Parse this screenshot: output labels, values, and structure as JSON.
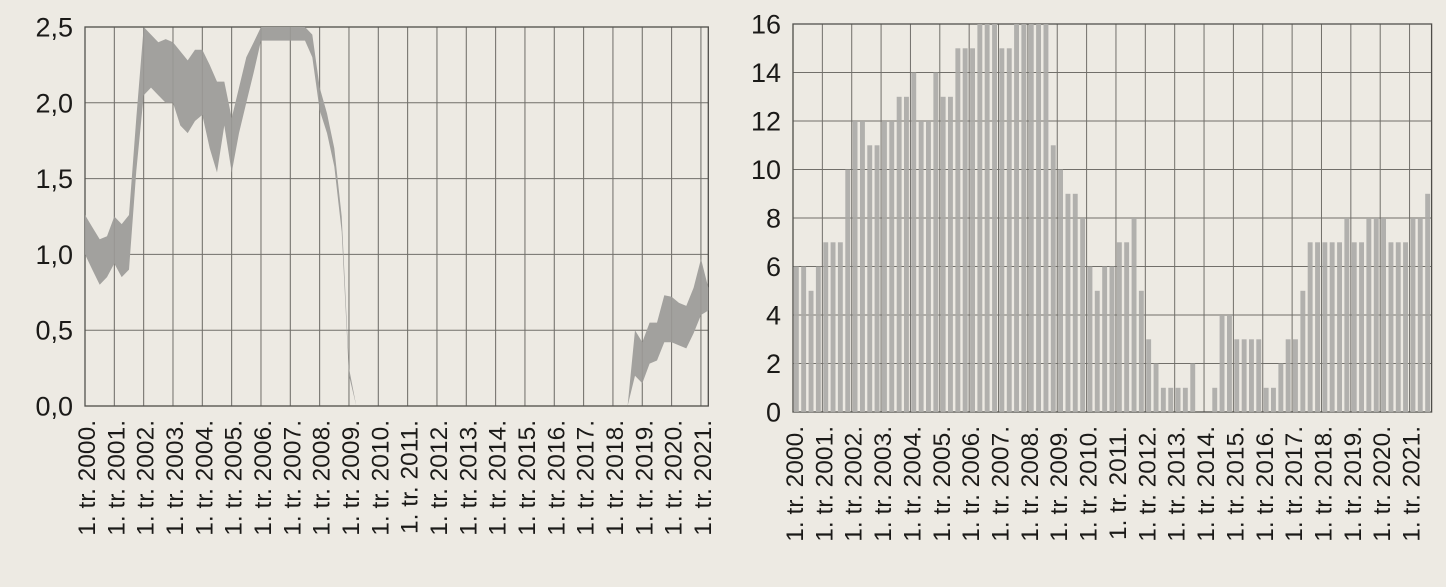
{
  "page": {
    "background": "#edeae3",
    "band_color": "#a2a19e",
    "bar_color": "#b1b0ad",
    "grid_color": "#716f6a",
    "spine_color": "#4e4d49",
    "text_color": "#1b1a18"
  },
  "chart_data": [
    {
      "type": "area",
      "name": "interest-rate-band-chart",
      "title": "",
      "xlabel": "",
      "ylabel": "",
      "ylim": [
        0.0,
        2.5
      ],
      "grid": true,
      "legend_position": "none",
      "y_tick_labels": [
        "2,5",
        "2,0",
        "1,5",
        "1,0",
        "0,5",
        "0,0"
      ],
      "y_tick_values": [
        2.5,
        2.0,
        1.5,
        1.0,
        0.5,
        0.0
      ],
      "x_tick_labels": [
        "1. tr. 2000.",
        "1. tr. 2001.",
        "1. tr. 2002.",
        "1. tr. 2003.",
        "1. tr. 2004.",
        "1. tr. 2005.",
        "1. tr. 2006.",
        "1. tr. 2007.",
        "1. tr. 2008.",
        "1. tr. 2009.",
        "1. tr. 2010.",
        "1. tr. 2011.",
        "1. tr. 2012.",
        "1. tr. 2013.",
        "1. tr. 2014.",
        "1. tr. 2015.",
        "1. tr. 2016.",
        "1. tr. 2017.",
        "1. tr. 2018.",
        "1. tr. 2019.",
        "1. tr. 2020.",
        "1. tr. 2021."
      ],
      "x_unit": "quarter",
      "series_note": "band between lower and upper bound, quarterly; gap 2009Q3-2018Q2",
      "segments": [
        {
          "start_quarter_index": 0,
          "start_label": "1. tr. 2000.",
          "lower": [
            1.0,
            0.9,
            0.8,
            0.85,
            0.94,
            0.85,
            0.9,
            1.55,
            2.05,
            2.1,
            2.05,
            2.0,
            2.0,
            1.85,
            1.8,
            1.88,
            1.92,
            1.7,
            1.54,
            1.85,
            1.54,
            1.8,
            2.0,
            2.2,
            2.41,
            2.41,
            2.41,
            2.41,
            2.41,
            2.41,
            2.41,
            2.3,
            1.95,
            1.8,
            1.58,
            1.15,
            0.2,
            0.0
          ],
          "upper": [
            1.26,
            1.18,
            1.1,
            1.12,
            1.25,
            1.2,
            1.26,
            1.9,
            2.5,
            2.45,
            2.4,
            2.42,
            2.4,
            2.34,
            2.28,
            2.35,
            2.35,
            2.25,
            2.14,
            2.14,
            1.9,
            2.1,
            2.3,
            2.4,
            2.5,
            2.5,
            2.5,
            2.5,
            2.5,
            2.5,
            2.5,
            2.45,
            2.1,
            1.93,
            1.7,
            1.25,
            0.25,
            0.0
          ]
        },
        {
          "start_quarter_index": 74,
          "start_label": "3. tr. 2018.",
          "lower": [
            0.0,
            0.2,
            0.15,
            0.28,
            0.3,
            0.42,
            0.42,
            0.4,
            0.38,
            0.48,
            0.6,
            0.63
          ],
          "upper": [
            0.0,
            0.5,
            0.42,
            0.55,
            0.55,
            0.73,
            0.72,
            0.68,
            0.66,
            0.78,
            0.97,
            0.78
          ]
        }
      ]
    },
    {
      "type": "bar",
      "name": "quarterly-count-bar-chart",
      "title": "",
      "xlabel": "",
      "ylabel": "",
      "ylim": [
        0,
        16
      ],
      "grid": true,
      "legend_position": "none",
      "y_tick_labels": [
        "16",
        "14",
        "12",
        "10",
        "8",
        "6",
        "4",
        "2",
        "0"
      ],
      "y_tick_values": [
        16,
        14,
        12,
        10,
        8,
        6,
        4,
        2,
        0
      ],
      "x_tick_labels": [
        "1. tr. 2000.",
        "1. tr. 2001.",
        "1. tr. 2002.",
        "1. tr. 2003.",
        "1. tr. 2004.",
        "1. tr. 2005.",
        "1. tr. 2006.",
        "1. tr. 2007.",
        "1. tr. 2008.",
        "1. tr. 2009.",
        "1. tr. 2010.",
        "1. tr. 2011.",
        "1. tr. 2012.",
        "1. tr. 2013.",
        "1. tr. 2014.",
        "1. tr. 2015.",
        "1. tr. 2016.",
        "1. tr. 2017.",
        "1. tr. 2018.",
        "1. tr. 2019.",
        "1. tr. 2020.",
        "1. tr. 2021."
      ],
      "x_unit": "quarter",
      "values": [
        6,
        6,
        5,
        6,
        7,
        7,
        7,
        10,
        12,
        12,
        11,
        11,
        12,
        12,
        13,
        13,
        14,
        12,
        12,
        14,
        13,
        13,
        15,
        15,
        15,
        16,
        16,
        16,
        15,
        15,
        16,
        16,
        16,
        16,
        16,
        11,
        10,
        9,
        9,
        8,
        6,
        5,
        6,
        6,
        7,
        7,
        8,
        5,
        3,
        2,
        1,
        1,
        1,
        1,
        2,
        0,
        0,
        1,
        4,
        4,
        3,
        3,
        3,
        3,
        1,
        1,
        2,
        3,
        3,
        5,
        7,
        7,
        7,
        7,
        7,
        8,
        7,
        7,
        8,
        8,
        8,
        7,
        7,
        7,
        8,
        8,
        9
      ]
    }
  ]
}
